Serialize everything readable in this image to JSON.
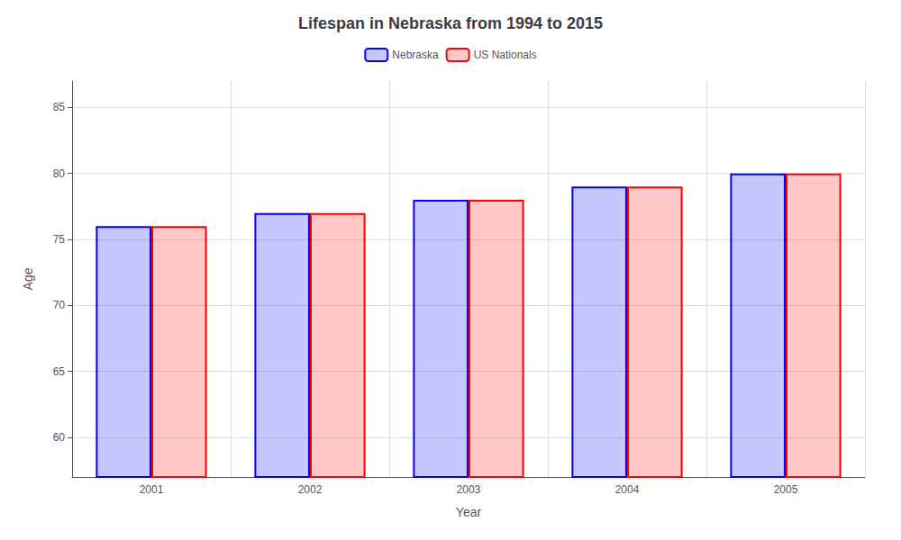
{
  "chart_data": {
    "type": "bar",
    "title": "Lifespan in Nebraska from 1994 to 2015",
    "x_label": "Year",
    "y_label": "Age",
    "categories": [
      "2001",
      "2002",
      "2003",
      "2004",
      "2005"
    ],
    "series": [
      {
        "name": "Nebraska",
        "color": "#0000ff",
        "values": [
          76,
          77,
          78,
          79,
          80
        ]
      },
      {
        "name": "US Nationals",
        "color": "#ff0000",
        "values": [
          76,
          77,
          78,
          79,
          80
        ]
      }
    ],
    "ylim": [
      57,
      87
    ],
    "yticks": [
      60,
      65,
      70,
      75,
      80,
      85
    ],
    "grid": true,
    "legend": "top"
  }
}
